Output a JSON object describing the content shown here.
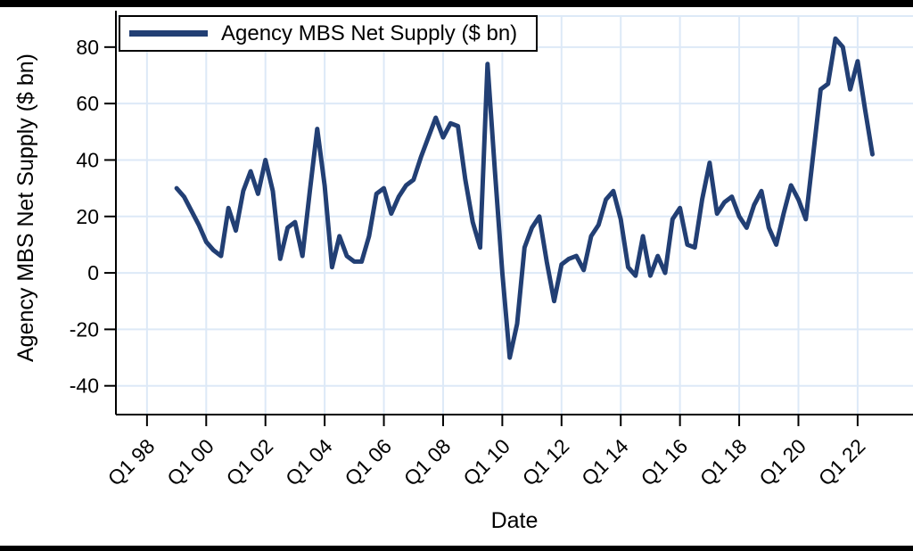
{
  "frame": {
    "top_bar_color": "#000000",
    "bottom_bar_color": "#000000",
    "background": "#ffffff"
  },
  "legend": {
    "label": "Agency MBS Net Supply ($ bn)",
    "swatch_color": "#223F74"
  },
  "chart_data": {
    "type": "line",
    "title": "",
    "xlabel": "Date",
    "ylabel": "Agency MBS Net Supply ($ bn)",
    "grid": true,
    "legend_position": "top-left",
    "gridline_color": "#dde9f7",
    "axis_color": "#000000",
    "line_color": "#223F74",
    "line_width": 5,
    "x_range": [
      1996.95,
      2023.87
    ],
    "y_range": [
      -50.2,
      91.0
    ],
    "x_ticks": [
      {
        "value": 1998,
        "label": "Q1 98"
      },
      {
        "value": 2000,
        "label": "Q1 00"
      },
      {
        "value": 2002,
        "label": "Q1 02"
      },
      {
        "value": 2004,
        "label": "Q1 04"
      },
      {
        "value": 2006,
        "label": "Q1 06"
      },
      {
        "value": 2008,
        "label": "Q1 08"
      },
      {
        "value": 2010,
        "label": "Q1 10"
      },
      {
        "value": 2012,
        "label": "Q1 12"
      },
      {
        "value": 2014,
        "label": "Q1 14"
      },
      {
        "value": 2016,
        "label": "Q1 16"
      },
      {
        "value": 2018,
        "label": "Q1 18"
      },
      {
        "value": 2020,
        "label": "Q1 20"
      },
      {
        "value": 2022,
        "label": "Q1 22"
      }
    ],
    "y_ticks": [
      {
        "value": -40,
        "label": "-40"
      },
      {
        "value": -20,
        "label": "-20"
      },
      {
        "value": 0,
        "label": "0"
      },
      {
        "value": 20,
        "label": "20"
      },
      {
        "value": 40,
        "label": "40"
      },
      {
        "value": 60,
        "label": "60"
      },
      {
        "value": 80,
        "label": "80"
      }
    ],
    "series": [
      {
        "name": "Agency MBS Net Supply ($ bn)",
        "frequency": "quarterly",
        "x": [
          1999,
          1999.25,
          1999.5,
          1999.75,
          2000,
          2000.25,
          2000.5,
          2000.75,
          2001,
          2001.25,
          2001.5,
          2001.75,
          2002,
          2002.25,
          2002.5,
          2002.75,
          2003,
          2003.25,
          2003.5,
          2003.75,
          2004,
          2004.25,
          2004.5,
          2004.75,
          2005,
          2005.25,
          2005.5,
          2005.75,
          2006,
          2006.25,
          2006.5,
          2006.75,
          2007,
          2007.25,
          2007.5,
          2007.75,
          2008,
          2008.25,
          2008.5,
          2008.75,
          2009,
          2009.25,
          2009.5,
          2009.75,
          2010,
          2010.25,
          2010.5,
          2010.75,
          2011,
          2011.25,
          2011.5,
          2011.75,
          2012,
          2012.25,
          2012.5,
          2012.75,
          2013,
          2013.25,
          2013.5,
          2013.75,
          2014,
          2014.25,
          2014.5,
          2014.75,
          2015,
          2015.25,
          2015.5,
          2015.75,
          2016,
          2016.25,
          2016.5,
          2016.75,
          2017,
          2017.25,
          2017.5,
          2017.75,
          2018,
          2018.25,
          2018.5,
          2018.75,
          2019,
          2019.25,
          2019.5,
          2019.75,
          2020,
          2020.25,
          2020.5,
          2020.75,
          2021,
          2021.25,
          2021.5,
          2021.75,
          2022,
          2022.25,
          2022.5
        ],
        "y": [
          30,
          27,
          22,
          17,
          11,
          8,
          6,
          23,
          15,
          29,
          36,
          28,
          40,
          29,
          5,
          16,
          18,
          6,
          29,
          51,
          31,
          2,
          13,
          6,
          4,
          4,
          13,
          28,
          30,
          21,
          27,
          31,
          33,
          41,
          48,
          55,
          48,
          53,
          52,
          33,
          18,
          9,
          74,
          36,
          0,
          -30,
          -18,
          9,
          16,
          20,
          4,
          -10,
          3,
          5,
          6,
          1,
          13,
          17,
          26,
          29,
          19,
          2,
          -1,
          13,
          -1,
          6,
          0,
          19,
          23,
          10,
          9,
          26,
          39,
          21,
          25,
          27,
          20,
          16,
          24,
          29,
          16,
          10,
          21,
          31,
          26,
          19,
          42,
          65,
          67,
          83,
          80,
          65,
          75,
          58,
          42
        ]
      }
    ]
  }
}
